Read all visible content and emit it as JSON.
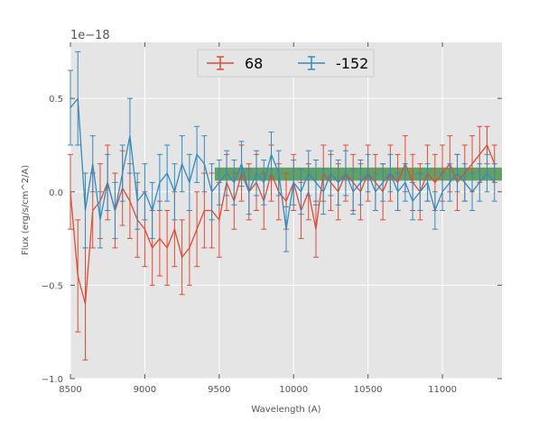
{
  "chart_data": {
    "type": "line",
    "title": "",
    "xlabel": "Wavelength (A)",
    "ylabel": "Flux (erg/s/cm^2/A)",
    "xlim": [
      8500,
      11400
    ],
    "ylim": [
      -1.0,
      0.8
    ],
    "y_offset_label": "1e−18",
    "xticks": [
      8500,
      9000,
      9500,
      10000,
      10500,
      11000
    ],
    "yticks": [
      0.5,
      0.0,
      -0.5,
      -1.0
    ],
    "ytick_labels": [
      "0.5",
      "0.0",
      "−0.5",
      "−1.0"
    ],
    "grid": true,
    "legend_position": "top-center",
    "series": [
      {
        "name": "68",
        "color": "#E24A33",
        "x": [
          8500,
          8550,
          8600,
          8650,
          8700,
          8750,
          8800,
          8850,
          8900,
          8950,
          9000,
          9050,
          9100,
          9150,
          9200,
          9250,
          9300,
          9350,
          9400,
          9450,
          9500,
          9550,
          9600,
          9650,
          9700,
          9750,
          9800,
          9850,
          9900,
          9950,
          10000,
          10050,
          10100,
          10150,
          10200,
          10250,
          10300,
          10350,
          10400,
          10450,
          10500,
          10550,
          10600,
          10650,
          10700,
          10750,
          10800,
          10850,
          10900,
          10950,
          11000,
          11050,
          11100,
          11150,
          11200,
          11250,
          11300,
          11350
        ],
        "y": [
          0.0,
          -0.45,
          -0.6,
          -0.1,
          -0.05,
          0.05,
          -0.1,
          0.02,
          -0.05,
          -0.15,
          -0.2,
          -0.3,
          -0.25,
          -0.3,
          -0.2,
          -0.35,
          -0.3,
          -0.2,
          -0.1,
          -0.1,
          -0.15,
          0.05,
          -0.05,
          0.1,
          0.0,
          0.05,
          -0.05,
          0.1,
          0.0,
          -0.05,
          0.05,
          -0.1,
          0.0,
          -0.2,
          0.1,
          0.05,
          0.0,
          0.1,
          0.05,
          0.0,
          0.1,
          0.05,
          0.0,
          0.1,
          0.05,
          0.15,
          0.05,
          0.0,
          0.1,
          0.05,
          0.1,
          0.15,
          0.05,
          0.1,
          0.15,
          0.2,
          0.25,
          0.15
        ],
        "err": [
          0.2,
          0.3,
          0.3,
          0.2,
          0.2,
          0.2,
          0.2,
          0.2,
          0.2,
          0.2,
          0.2,
          0.2,
          0.2,
          0.2,
          0.2,
          0.2,
          0.2,
          0.2,
          0.2,
          0.2,
          0.2,
          0.15,
          0.15,
          0.15,
          0.15,
          0.15,
          0.15,
          0.15,
          0.15,
          0.15,
          0.15,
          0.15,
          0.15,
          0.15,
          0.15,
          0.15,
          0.15,
          0.15,
          0.15,
          0.15,
          0.15,
          0.15,
          0.15,
          0.15,
          0.15,
          0.15,
          0.15,
          0.15,
          0.15,
          0.15,
          0.15,
          0.15,
          0.15,
          0.15,
          0.15,
          0.15,
          0.1,
          0.1
        ]
      },
      {
        "name": "-152",
        "color": "#348ABD",
        "x": [
          8500,
          8550,
          8600,
          8650,
          8700,
          8750,
          8800,
          8850,
          8900,
          8950,
          9000,
          9050,
          9100,
          9150,
          9200,
          9250,
          9300,
          9350,
          9400,
          9450,
          9500,
          9550,
          9600,
          9650,
          9700,
          9750,
          9800,
          9850,
          9900,
          9950,
          10000,
          10050,
          10100,
          10150,
          10200,
          10250,
          10300,
          10350,
          10400,
          10450,
          10500,
          10550,
          10600,
          10650,
          10700,
          10750,
          10800,
          10850,
          10900,
          10950,
          11000,
          11050,
          11100,
          11150,
          11200,
          11250,
          11300,
          11350
        ],
        "y": [
          0.45,
          0.5,
          -0.1,
          0.15,
          -0.15,
          0.05,
          -0.1,
          0.1,
          0.3,
          -0.05,
          0.0,
          -0.1,
          0.05,
          0.1,
          0.0,
          0.15,
          0.05,
          0.2,
          0.15,
          0.0,
          0.05,
          0.1,
          0.05,
          0.15,
          0.0,
          0.1,
          0.05,
          0.2,
          0.1,
          -0.2,
          0.05,
          0.0,
          0.1,
          0.05,
          0.0,
          0.1,
          0.05,
          0.1,
          0.0,
          0.05,
          0.1,
          0.0,
          0.05,
          0.1,
          0.0,
          0.05,
          -0.05,
          0.0,
          0.05,
          -0.1,
          0.0,
          0.05,
          0.1,
          0.05,
          0.0,
          0.05,
          0.1,
          0.05
        ],
        "err": [
          0.2,
          0.25,
          0.2,
          0.15,
          0.15,
          0.15,
          0.15,
          0.15,
          0.2,
          0.15,
          0.15,
          0.15,
          0.15,
          0.15,
          0.15,
          0.15,
          0.15,
          0.15,
          0.15,
          0.15,
          0.12,
          0.12,
          0.12,
          0.12,
          0.12,
          0.12,
          0.12,
          0.12,
          0.12,
          0.12,
          0.12,
          0.12,
          0.12,
          0.12,
          0.12,
          0.12,
          0.12,
          0.12,
          0.12,
          0.12,
          0.1,
          0.1,
          0.1,
          0.1,
          0.1,
          0.1,
          0.1,
          0.1,
          0.1,
          0.1,
          0.1,
          0.1,
          0.1,
          0.1,
          0.1,
          0.1,
          0.1,
          0.1
        ]
      }
    ],
    "bands": [
      {
        "x_start": 9470,
        "x_end": 11400,
        "y_low": 0.06,
        "y_high": 0.13,
        "color": "#348A3A",
        "opacity": 0.75
      }
    ]
  }
}
